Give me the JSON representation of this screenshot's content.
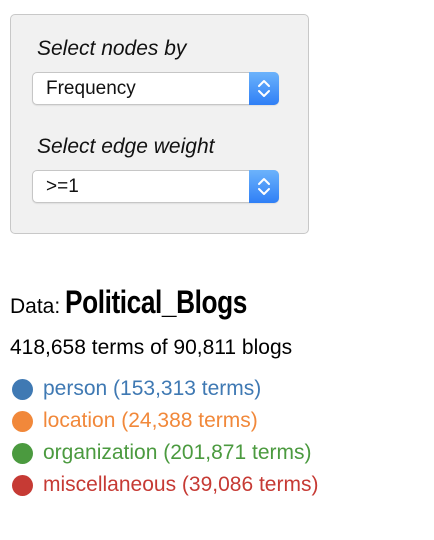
{
  "controls": {
    "nodes_label": "Select nodes by",
    "nodes_value": "Frequency",
    "edge_label": "Select edge weight",
    "edge_value": ">=1"
  },
  "dataset": {
    "label": "Data:",
    "name": "Political_Blogs",
    "summary": "418,658 terms of 90,811 blogs"
  },
  "legend": [
    {
      "text": "person (153,313 terms)",
      "color": "#3f79b3"
    },
    {
      "text": "location (24,388 terms)",
      "color": "#f1883a"
    },
    {
      "text": "organization (201,871 terms)",
      "color": "#4b9a3f"
    },
    {
      "text": "miscellaneous (39,086 terms)",
      "color": "#c63a34"
    }
  ],
  "colors": {
    "select_arrow_top": "#6cb3fb",
    "select_arrow_bottom": "#2f7ff6",
    "panel_bg": "#f1f1f1"
  }
}
